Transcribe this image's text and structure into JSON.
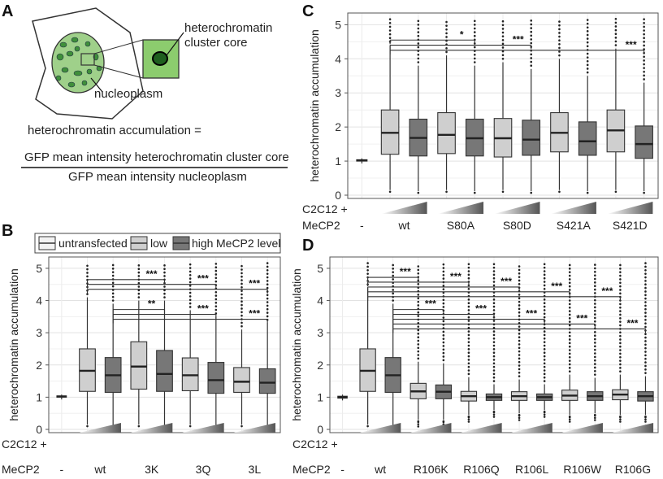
{
  "panels": {
    "A": "A",
    "B": "B",
    "C": "C",
    "D": "D"
  },
  "schematic": {
    "label_core": [
      "heterochromatin",
      "cluster core"
    ],
    "label_nucleoplasm": "nucleoplasm",
    "formula_lhs": "heterochromatin accumulation  =",
    "formula_numerator": "GFP mean intensity heterochromatin cluster core",
    "formula_denominator": "GFP mean intensity nucleoplasm",
    "colors": {
      "cell_fill": "#ffffff",
      "nucleus_fill": "#9fd08a",
      "spot_fill": "#3f8f3a",
      "inset_fill": "#8ccc6e",
      "core_fill": "#1f5f1f"
    }
  },
  "legend": {
    "items": [
      "untransfected",
      "low",
      "high"
    ],
    "suffix": "MeCP2 level",
    "colors": [
      "#f2f2f2",
      "#cfcfcf",
      "#777777"
    ]
  },
  "common": {
    "ylabel": "heterochromatin accumulation",
    "row1": "C2C12 +",
    "row2": "MeCP2",
    "untransfected_label": "-",
    "yticks": [
      "0",
      "1",
      "2",
      "3",
      "4",
      "5"
    ]
  },
  "colors": {
    "untransfected": "#f2f2f2",
    "low": "#cfcfcf",
    "high": "#777777",
    "grid": "#e8e8e8",
    "frame": "#555555"
  },
  "chart_data": [
    {
      "panel": "B",
      "type": "box",
      "ylabel": "heterochromatin accumulation",
      "ylim": [
        0,
        5.2
      ],
      "groups": [
        "wt",
        "3K",
        "3Q",
        "3L"
      ],
      "boxes": [
        {
          "group": "-",
          "level": "untransfected",
          "q1": 1.0,
          "median": 1.02,
          "q3": 1.04,
          "lower": 0.93,
          "upper": 1.08
        },
        {
          "group": "wt",
          "level": "low",
          "q1": 1.18,
          "median": 1.82,
          "q3": 2.5,
          "lower": 0.15,
          "upper": 4.1
        },
        {
          "group": "wt",
          "level": "high",
          "q1": 1.15,
          "median": 1.68,
          "q3": 2.23,
          "lower": 0.12,
          "upper": 3.9
        },
        {
          "group": "3K",
          "level": "low",
          "q1": 1.25,
          "median": 1.95,
          "q3": 2.72,
          "lower": 0.15,
          "upper": 4.0
        },
        {
          "group": "3K",
          "level": "high",
          "q1": 1.18,
          "median": 1.72,
          "q3": 2.45,
          "lower": 0.12,
          "upper": 4.0
        },
        {
          "group": "3Q",
          "level": "low",
          "q1": 1.2,
          "median": 1.68,
          "q3": 2.22,
          "lower": 0.15,
          "upper": 3.7
        },
        {
          "group": "3Q",
          "level": "high",
          "q1": 1.12,
          "median": 1.53,
          "q3": 2.08,
          "lower": 0.12,
          "upper": 3.5
        },
        {
          "group": "3L",
          "level": "low",
          "q1": 1.15,
          "median": 1.48,
          "q3": 1.92,
          "lower": 0.15,
          "upper": 3.1
        },
        {
          "group": "3L",
          "level": "high",
          "q1": 1.12,
          "median": 1.45,
          "q3": 1.88,
          "lower": 0.12,
          "upper": 3.3
        }
      ],
      "brackets": [
        {
          "from": 1,
          "to": 4,
          "y": 4.65,
          "label": "***"
        },
        {
          "from": 1,
          "to": 6,
          "y": 4.5,
          "label": "***"
        },
        {
          "from": 1,
          "to": 8,
          "y": 4.35,
          "label": "***"
        },
        {
          "from": 2,
          "to": 4,
          "y": 3.72,
          "label": "**"
        },
        {
          "from": 2,
          "to": 6,
          "y": 3.57,
          "label": "***"
        },
        {
          "from": 2,
          "to": 8,
          "y": 3.42,
          "label": "***"
        }
      ]
    },
    {
      "panel": "C",
      "type": "box",
      "ylabel": "heterochromatin accumulation",
      "ylim": [
        0,
        5.2
      ],
      "groups": [
        "wt",
        "S80A",
        "S80D",
        "S421A",
        "S421D"
      ],
      "boxes": [
        {
          "group": "-",
          "level": "untransfected",
          "q1": 1.0,
          "median": 1.02,
          "q3": 1.04,
          "lower": 0.93,
          "upper": 1.08
        },
        {
          "group": "wt",
          "level": "low",
          "q1": 1.2,
          "median": 1.83,
          "q3": 2.5,
          "lower": 0.15,
          "upper": 4.4
        },
        {
          "group": "wt",
          "level": "high",
          "q1": 1.15,
          "median": 1.68,
          "q3": 2.23,
          "lower": 0.12,
          "upper": 3.8
        },
        {
          "group": "S80A",
          "level": "low",
          "q1": 1.22,
          "median": 1.77,
          "q3": 2.42,
          "lower": 0.15,
          "upper": 4.1
        },
        {
          "group": "S80A",
          "level": "high",
          "q1": 1.15,
          "median": 1.67,
          "q3": 2.23,
          "lower": 0.12,
          "upper": 3.8
        },
        {
          "group": "S80D",
          "level": "low",
          "q1": 1.12,
          "median": 1.67,
          "q3": 2.25,
          "lower": 0.15,
          "upper": 3.9
        },
        {
          "group": "S80D",
          "level": "high",
          "q1": 1.17,
          "median": 1.63,
          "q3": 2.2,
          "lower": 0.12,
          "upper": 3.7
        },
        {
          "group": "S421A",
          "level": "low",
          "q1": 1.27,
          "median": 1.83,
          "q3": 2.42,
          "lower": 0.15,
          "upper": 4.0
        },
        {
          "group": "S421A",
          "level": "high",
          "q1": 1.17,
          "median": 1.58,
          "q3": 2.15,
          "lower": 0.12,
          "upper": 3.5
        },
        {
          "group": "S421D",
          "level": "low",
          "q1": 1.27,
          "median": 1.9,
          "q3": 2.5,
          "lower": 0.15,
          "upper": 4.3
        },
        {
          "group": "S421D",
          "level": "high",
          "q1": 1.08,
          "median": 1.5,
          "q3": 2.03,
          "lower": 0.12,
          "upper": 3.3
        }
      ],
      "brackets": [
        {
          "from": 1,
          "to": 4,
          "y": 4.55,
          "label": "*"
        },
        {
          "from": 1,
          "to": 6,
          "y": 4.4,
          "label": "***"
        },
        {
          "from": 1,
          "to": 10,
          "y": 4.25,
          "label": "***"
        }
      ]
    },
    {
      "panel": "D",
      "type": "box",
      "ylabel": "heterochromatin accumulation",
      "ylim": [
        0,
        5.2
      ],
      "groups": [
        "wt",
        "R106K",
        "R106Q",
        "R106L",
        "R106W",
        "R106G"
      ],
      "boxes": [
        {
          "group": "-",
          "level": "untransfected",
          "q1": 0.97,
          "median": 1.0,
          "q3": 1.03,
          "lower": 0.9,
          "upper": 1.08
        },
        {
          "group": "wt",
          "level": "low",
          "q1": 1.18,
          "median": 1.82,
          "q3": 2.5,
          "lower": 0.15,
          "upper": 4.4
        },
        {
          "group": "wt",
          "level": "high",
          "q1": 1.15,
          "median": 1.68,
          "q3": 2.23,
          "lower": 0.12,
          "upper": 3.9
        },
        {
          "group": "R106K",
          "level": "low",
          "q1": 0.95,
          "median": 1.18,
          "q3": 1.43,
          "lower": 0.3,
          "upper": 2.1
        },
        {
          "group": "R106K",
          "level": "high",
          "q1": 0.95,
          "median": 1.17,
          "q3": 1.38,
          "lower": 0.3,
          "upper": 2.05
        },
        {
          "group": "R106Q",
          "level": "low",
          "q1": 0.88,
          "median": 1.03,
          "q3": 1.18,
          "lower": 0.45,
          "upper": 1.62
        },
        {
          "group": "R106Q",
          "level": "high",
          "q1": 0.9,
          "median": 1.0,
          "q3": 1.1,
          "lower": 0.6,
          "upper": 1.4
        },
        {
          "group": "R106L",
          "level": "low",
          "q1": 0.9,
          "median": 1.03,
          "q3": 1.17,
          "lower": 0.5,
          "upper": 1.55
        },
        {
          "group": "R106L",
          "level": "high",
          "q1": 0.9,
          "median": 1.0,
          "q3": 1.1,
          "lower": 0.6,
          "upper": 1.4
        },
        {
          "group": "R106W",
          "level": "low",
          "q1": 0.9,
          "median": 1.05,
          "q3": 1.22,
          "lower": 0.45,
          "upper": 1.7
        },
        {
          "group": "R106W",
          "level": "high",
          "q1": 0.9,
          "median": 1.03,
          "q3": 1.17,
          "lower": 0.5,
          "upper": 1.6
        },
        {
          "group": "R106G",
          "level": "low",
          "q1": 0.92,
          "median": 1.08,
          "q3": 1.23,
          "lower": 0.45,
          "upper": 1.7
        },
        {
          "group": "R106G",
          "level": "high",
          "q1": 0.88,
          "median": 1.03,
          "q3": 1.17,
          "lower": 0.45,
          "upper": 1.65
        }
      ],
      "brackets": [
        {
          "from": 1,
          "to": 3,
          "y": 4.72,
          "label": "***"
        },
        {
          "from": 1,
          "to": 5,
          "y": 4.57,
          "label": "***"
        },
        {
          "from": 1,
          "to": 7,
          "y": 4.42,
          "label": "***"
        },
        {
          "from": 1,
          "to": 9,
          "y": 4.27,
          "label": "***"
        },
        {
          "from": 1,
          "to": 11,
          "y": 4.12,
          "label": "***"
        },
        {
          "from": 2,
          "to": 4,
          "y": 3.72,
          "label": "***"
        },
        {
          "from": 2,
          "to": 6,
          "y": 3.57,
          "label": "***"
        },
        {
          "from": 2,
          "to": 8,
          "y": 3.42,
          "label": "***"
        },
        {
          "from": 2,
          "to": 10,
          "y": 3.27,
          "label": "***"
        },
        {
          "from": 2,
          "to": 12,
          "y": 3.12,
          "label": "***"
        }
      ]
    }
  ]
}
